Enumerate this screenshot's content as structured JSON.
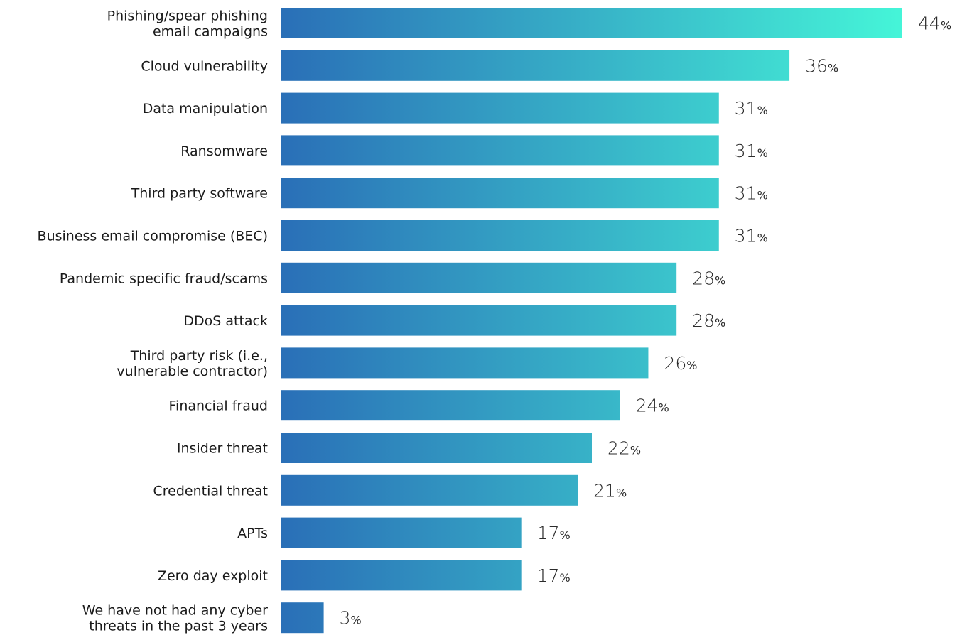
{
  "chart_data": {
    "type": "bar",
    "orientation": "horizontal",
    "categories": [
      "Phishing/spear phishing email campaigns",
      "Cloud vulnerability",
      "Data manipulation",
      "Ransomware",
      "Third party software",
      "Business email compromise (BEC)",
      "Pandemic specific fraud/scams",
      "DDoS attack",
      "Third party risk (i.e., vulnerable contractor)",
      "Financial fraud",
      "Insider threat",
      "Credential threat",
      "APTs",
      "Zero day exploit",
      "We have not had any cyber threats in the past 3 years"
    ],
    "category_lines": [
      [
        "Phishing/spear phishing",
        "email campaigns"
      ],
      [
        "Cloud vulnerability"
      ],
      [
        "Data manipulation"
      ],
      [
        "Ransomware"
      ],
      [
        "Third party software"
      ],
      [
        "Business email compromise (BEC)"
      ],
      [
        "Pandemic specific fraud/scams"
      ],
      [
        "DDoS attack"
      ],
      [
        "Third party risk (i.e.,",
        "vulnerable contractor)"
      ],
      [
        "Financial fraud"
      ],
      [
        "Insider threat"
      ],
      [
        "Credential threat"
      ],
      [
        "APTs"
      ],
      [
        "Zero day exploit"
      ],
      [
        "We have not had any cyber",
        "threats in the past 3 years"
      ]
    ],
    "values": [
      44,
      36,
      31,
      31,
      31,
      31,
      28,
      28,
      26,
      24,
      22,
      21,
      17,
      17,
      3
    ],
    "value_suffix": "%",
    "xlim": [
      0,
      44
    ],
    "grid": false,
    "legend": "none",
    "colors": {
      "gradient_start": "#2a6fb7",
      "gradient_end": "#45f5d8",
      "label_text": "#1a1a1a",
      "value_text": "#2b2b2b"
    }
  }
}
